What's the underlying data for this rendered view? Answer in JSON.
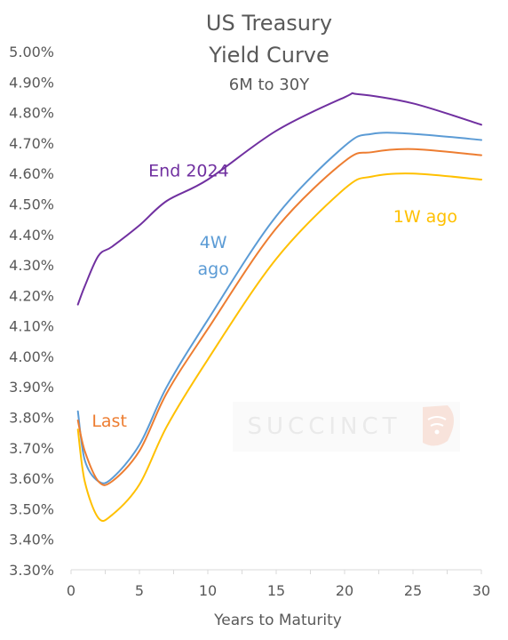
{
  "chart_data": {
    "type": "line",
    "title_lines": [
      "US Treasury",
      "Yield Curve"
    ],
    "subtitle": "6M to 30Y",
    "xlabel": "Years to Maturity",
    "ylabel": "",
    "xlim": [
      0,
      30
    ],
    "ylim": [
      3.3,
      5.0
    ],
    "x_ticks": [
      0,
      5,
      10,
      15,
      20,
      25,
      30
    ],
    "y_ticks": [
      3.3,
      3.4,
      3.5,
      3.6,
      3.7,
      3.8,
      3.9,
      4.0,
      4.1,
      4.2,
      4.3,
      4.4,
      4.5,
      4.6,
      4.7,
      4.8,
      4.9,
      5.0
    ],
    "y_tick_labels": [
      "3.30%",
      "3.40%",
      "3.50%",
      "3.60%",
      "3.70%",
      "3.80%",
      "3.90%",
      "4.00%",
      "4.10%",
      "4.20%",
      "4.30%",
      "4.40%",
      "4.50%",
      "4.60%",
      "4.70%",
      "4.80%",
      "4.90%",
      "5.00%"
    ],
    "grid": false,
    "watermark": "SUCCINCT",
    "series": [
      {
        "name": "End 2024",
        "color": "#7030A0",
        "label_pos": [
          8.6,
          4.59
        ],
        "points": [
          [
            0.5,
            4.17
          ],
          [
            1,
            4.23
          ],
          [
            2,
            4.33
          ],
          [
            3,
            4.36
          ],
          [
            5,
            4.43
          ],
          [
            7,
            4.51
          ],
          [
            10,
            4.58
          ],
          [
            15,
            4.74
          ],
          [
            20,
            4.85
          ],
          [
            21,
            4.86
          ],
          [
            25,
            4.83
          ],
          [
            30,
            4.76
          ]
        ]
      },
      {
        "name": "4W\nago",
        "color": "#5B9BD5",
        "label_pos": [
          10.4,
          4.355
        ],
        "points": [
          [
            0.5,
            3.82
          ],
          [
            1,
            3.66
          ],
          [
            2,
            3.59
          ],
          [
            3,
            3.6
          ],
          [
            5,
            3.71
          ],
          [
            7,
            3.9
          ],
          [
            10,
            4.12
          ],
          [
            15,
            4.46
          ],
          [
            20,
            4.69
          ],
          [
            22,
            4.73
          ],
          [
            25,
            4.73
          ],
          [
            30,
            4.71
          ]
        ]
      },
      {
        "name": "Last",
        "color": "#ED7D31",
        "label_pos": [
          2.8,
          3.77
        ],
        "points": [
          [
            0.5,
            3.79
          ],
          [
            1,
            3.69
          ],
          [
            2,
            3.59
          ],
          [
            3,
            3.59
          ],
          [
            5,
            3.69
          ],
          [
            7,
            3.88
          ],
          [
            10,
            4.09
          ],
          [
            15,
            4.42
          ],
          [
            20,
            4.64
          ],
          [
            22,
            4.67
          ],
          [
            25,
            4.68
          ],
          [
            30,
            4.66
          ]
        ]
      },
      {
        "name": "1W ago",
        "color": "#FFC000",
        "label_pos": [
          25.9,
          4.44
        ],
        "points": [
          [
            0.5,
            3.76
          ],
          [
            1,
            3.59
          ],
          [
            2,
            3.47
          ],
          [
            3,
            3.48
          ],
          [
            5,
            3.58
          ],
          [
            7,
            3.77
          ],
          [
            10,
            3.99
          ],
          [
            15,
            4.32
          ],
          [
            20,
            4.55
          ],
          [
            22,
            4.59
          ],
          [
            25,
            4.6
          ],
          [
            30,
            4.58
          ]
        ]
      }
    ]
  }
}
